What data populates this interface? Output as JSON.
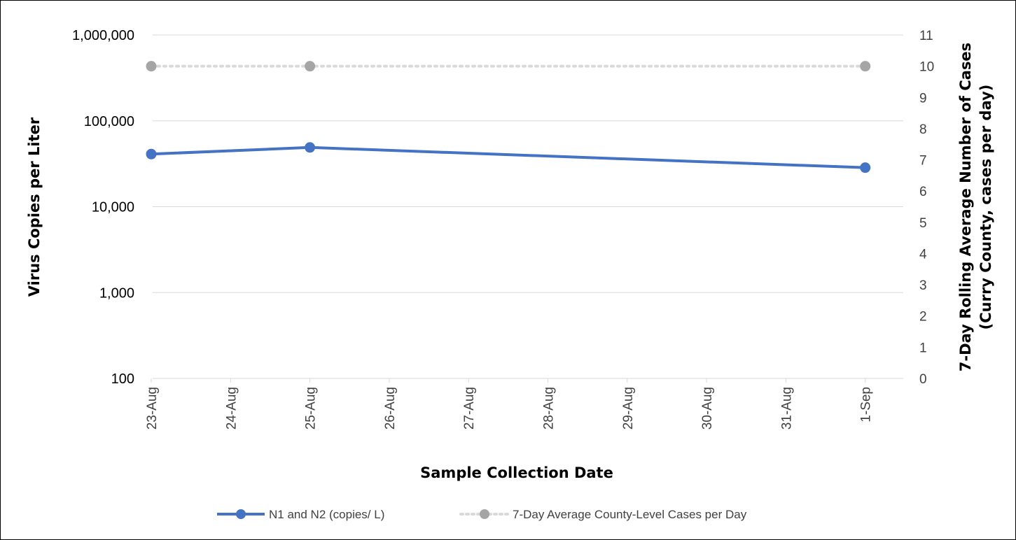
{
  "chart_data": {
    "type": "line",
    "x_dates": [
      "23-Aug",
      "24-Aug",
      "25-Aug",
      "26-Aug",
      "27-Aug",
      "28-Aug",
      "29-Aug",
      "30-Aug",
      "31-Aug",
      "1-Sep"
    ],
    "xlabel": "Sample Collection Date",
    "ylabel_left": "Virus Copies per Liter",
    "ylabel_right_line1": "7-Day Rolling Average Number of Cases",
    "ylabel_right_line2": "(Curry County, cases per day)",
    "y_left_scale": "log",
    "y_left_range": [
      100,
      1000000
    ],
    "y_left_ticks": [
      100,
      1000,
      10000,
      100000,
      1000000
    ],
    "y_left_tick_labels": [
      "100",
      "1,000",
      "10,000",
      "100,000",
      "1,000,000"
    ],
    "y_right_range": [
      0,
      11
    ],
    "y_right_ticks": [
      "0",
      "1",
      "2",
      "3",
      "4",
      "5",
      "6",
      "7",
      "8",
      "9",
      "10",
      "11"
    ],
    "grid": true,
    "legend_position": "bottom",
    "series": [
      {
        "name": "N1 and N2 (copies/ L)",
        "axis": "left",
        "color": "#4472C4",
        "style": "solid",
        "points": [
          {
            "x": "23-Aug",
            "y": 41000
          },
          {
            "x": "25-Aug",
            "y": 49000
          },
          {
            "x": "1-Sep",
            "y": 28500
          }
        ]
      },
      {
        "name": "7-Day Average County-Level Cases per Day",
        "axis": "right",
        "color": "#A5A5A5",
        "style": "dotted",
        "points": [
          {
            "x": "23-Aug",
            "y": 10
          },
          {
            "x": "25-Aug",
            "y": 10
          },
          {
            "x": "1-Sep",
            "y": 10
          }
        ]
      }
    ]
  }
}
